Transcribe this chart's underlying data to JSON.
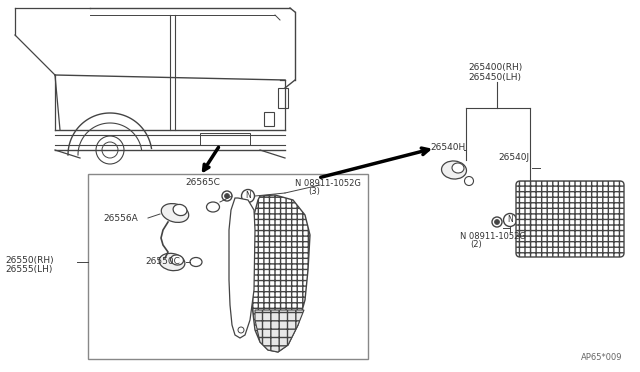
{
  "bg_color": "#ffffff",
  "line_color": "#444444",
  "text_color": "#333333",
  "diagram_code": "AP65*009",
  "fs": 6.0,
  "labels": {
    "part_26565C": "26565C",
    "part_nut1_line1": "N 08911-1052G",
    "part_nut1_line2": "(3)",
    "part_26556A": "26556A",
    "part_26550C": "26550C",
    "part_main_rh": "26550(RH)",
    "part_main_lh": "26555(LH)",
    "part_side_rh": "265400(RH)",
    "part_side_lh": "265450(LH)",
    "part_26540H": "26540H",
    "part_26540J": "26540J",
    "part_nut2_line1": "N 08911-1052G",
    "part_nut2_line2": "(2)"
  }
}
